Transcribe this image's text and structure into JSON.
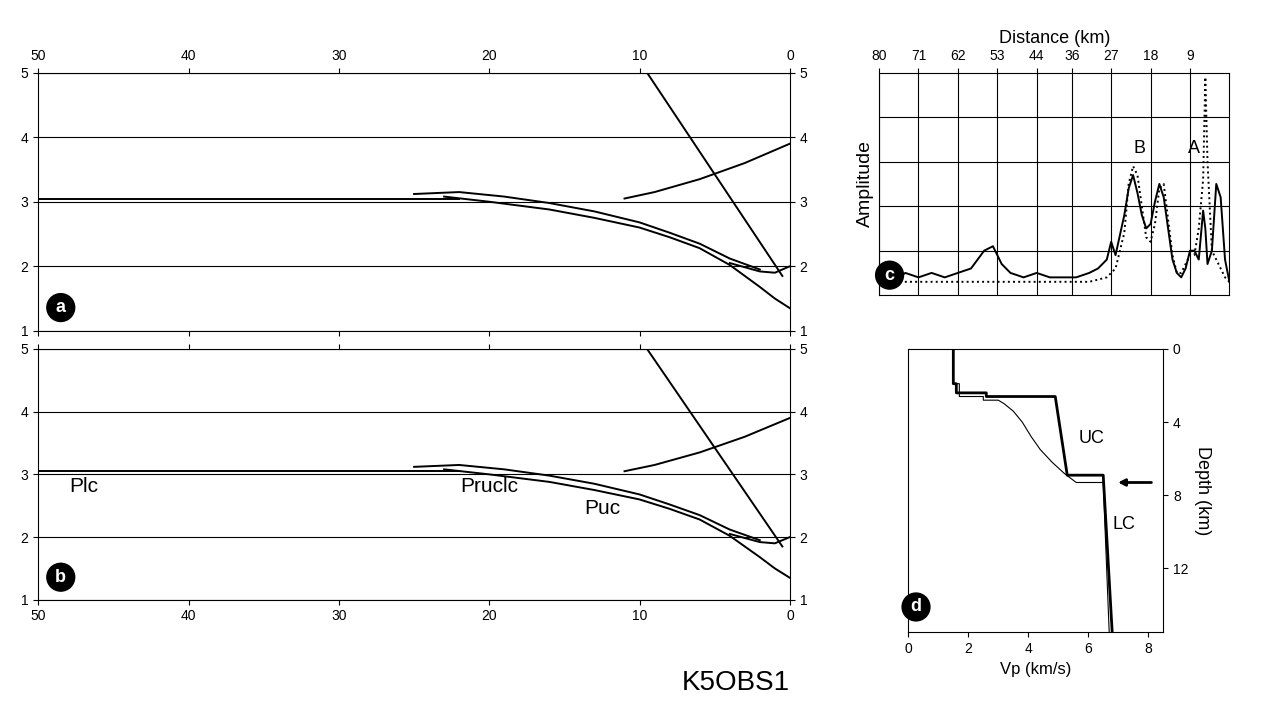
{
  "chart_data": [
    {
      "type": "line",
      "title": "a",
      "xlim": [
        50,
        0
      ],
      "xticks": [
        50,
        40,
        30,
        20,
        10,
        0
      ],
      "ylim": [
        1,
        5
      ],
      "yticks": [
        1,
        2,
        3,
        4,
        5
      ],
      "grid": true,
      "series": [
        {
          "color": "#000000",
          "line_style": "solid",
          "x": [
            0,
            1,
            2,
            3,
            4,
            6,
            8,
            10,
            13,
            16,
            20,
            23
          ],
          "values": [
            1.35,
            1.5,
            1.68,
            1.85,
            2.02,
            2.28,
            2.45,
            2.6,
            2.75,
            2.88,
            3.0,
            3.08
          ]
        },
        {
          "color": "#000000",
          "line_style": "solid",
          "x": [
            2,
            4,
            6,
            8,
            10,
            13,
            16,
            19,
            22,
            25
          ],
          "values": [
            1.95,
            2.12,
            2.35,
            2.52,
            2.68,
            2.85,
            2.98,
            3.08,
            3.15,
            3.12
          ]
        },
        {
          "color": "#000000",
          "line_style": "solid",
          "x": [
            50,
            40,
            30,
            22
          ],
          "values": [
            3.05,
            3.05,
            3.05,
            3.05
          ]
        },
        {
          "color": "#000000",
          "line_style": "solid",
          "x": [
            0,
            1,
            2,
            4
          ],
          "values": [
            2.0,
            1.9,
            1.92,
            2.05
          ]
        },
        {
          "color": "#000000",
          "line_style": "solid",
          "x": [
            0,
            3,
            6,
            9,
            11
          ],
          "values": [
            3.9,
            3.6,
            3.35,
            3.15,
            3.05
          ]
        },
        {
          "color": "#000000",
          "line_style": "solid",
          "x": [
            0.5,
            9.5
          ],
          "values": [
            1.85,
            5.0
          ]
        }
      ]
    },
    {
      "type": "line",
      "title": "b",
      "xlim": [
        50,
        0
      ],
      "xticks": [
        50,
        40,
        30,
        20,
        10,
        0
      ],
      "ylim": [
        1,
        5
      ],
      "yticks": [
        1,
        2,
        3,
        4,
        5
      ],
      "grid": true,
      "series": [
        {
          "color": "#000000",
          "line_style": "solid",
          "x": [
            0,
            1,
            2,
            3,
            4,
            6,
            8,
            10,
            13,
            16,
            20,
            23
          ],
          "values": [
            1.35,
            1.5,
            1.68,
            1.85,
            2.02,
            2.28,
            2.45,
            2.6,
            2.75,
            2.88,
            3.0,
            3.08
          ]
        },
        {
          "color": "#000000",
          "line_style": "solid",
          "x": [
            2,
            4,
            6,
            8,
            10,
            13,
            16,
            19,
            22,
            25
          ],
          "values": [
            1.95,
            2.12,
            2.35,
            2.52,
            2.68,
            2.85,
            2.98,
            3.08,
            3.15,
            3.12
          ]
        },
        {
          "color": "#000000",
          "line_style": "solid",
          "x": [
            50,
            40,
            30,
            22
          ],
          "values": [
            3.05,
            3.05,
            3.05,
            3.05
          ]
        },
        {
          "color": "#000000",
          "line_style": "solid",
          "x": [
            0,
            1,
            2,
            4
          ],
          "values": [
            2.0,
            1.9,
            1.92,
            2.05
          ]
        },
        {
          "color": "#000000",
          "line_style": "solid",
          "x": [
            0,
            3,
            6,
            9,
            11
          ],
          "values": [
            3.9,
            3.6,
            3.35,
            3.15,
            3.05
          ]
        },
        {
          "color": "#000000",
          "line_style": "solid",
          "x": [
            0.5,
            9.5
          ],
          "values": [
            1.85,
            5.0
          ]
        }
      ],
      "annotations": [
        {
          "text": "Plc",
          "x": 47,
          "y": 2.8
        },
        {
          "text": "Pruclc",
          "x": 20,
          "y": 2.8
        },
        {
          "text": "Puc",
          "x": 12.5,
          "y": 2.45
        }
      ]
    },
    {
      "type": "line",
      "title": "c",
      "x_label": "Distance (km)",
      "y_label": "Amplitude",
      "xlim": [
        80,
        0
      ],
      "xticks": [
        80,
        71,
        62,
        53,
        44,
        36,
        27,
        18,
        9
      ],
      "ylim": [
        0,
        5
      ],
      "yticks": [
        1,
        2,
        3,
        4
      ],
      "grid": true,
      "tick_labels": "x",
      "x": [
        80,
        77,
        74,
        71,
        68,
        65,
        62,
        59,
        56,
        54,
        52,
        50,
        47,
        44,
        41,
        38,
        35,
        32,
        30,
        28,
        27,
        26,
        24,
        23,
        22,
        21,
        20,
        19,
        18,
        17,
        16,
        15,
        14,
        13,
        12,
        11,
        10,
        9,
        8,
        7,
        6,
        5.5,
        5,
        4,
        3,
        2,
        1,
        0
      ],
      "series": [
        {
          "color": "#000000",
          "line_style": "solid",
          "values": [
            0.4,
            0.3,
            0.5,
            0.4,
            0.5,
            0.4,
            0.5,
            0.6,
            1.0,
            1.1,
            0.7,
            0.5,
            0.4,
            0.5,
            0.4,
            0.4,
            0.4,
            0.5,
            0.6,
            0.8,
            1.2,
            0.9,
            1.8,
            2.4,
            2.7,
            2.3,
            1.8,
            1.5,
            1.6,
            2.1,
            2.5,
            2.2,
            1.5,
            0.8,
            0.5,
            0.4,
            0.6,
            1.0,
            1.0,
            0.8,
            1.9,
            1.5,
            0.7,
            1.0,
            2.5,
            2.2,
            0.8,
            0.3
          ]
        },
        {
          "color": "#000000",
          "line_style": "dotted",
          "values": [
            0.3,
            0.3,
            0.3,
            0.3,
            0.3,
            0.3,
            0.3,
            0.3,
            0.3,
            0.3,
            0.3,
            0.3,
            0.3,
            0.3,
            0.3,
            0.3,
            0.3,
            0.3,
            0.35,
            0.4,
            0.5,
            0.6,
            1.4,
            2.5,
            2.9,
            2.7,
            2.0,
            1.3,
            1.2,
            1.6,
            2.4,
            2.5,
            1.7,
            0.9,
            0.5,
            0.5,
            0.7,
            0.9,
            0.9,
            1.5,
            2.6,
            4.9,
            3.0,
            1.0,
            0.8,
            0.6,
            0.4,
            0.3
          ]
        }
      ],
      "annotations": [
        {
          "text": "B",
          "x": 20.5,
          "y": 3.3
        },
        {
          "text": "A",
          "x": 8,
          "y": 3.3
        }
      ]
    },
    {
      "type": "line",
      "title": "d",
      "x_label": "Vp (km/s)",
      "y_label": "Depth (km)",
      "xlim": [
        0,
        8.5
      ],
      "xticks": [
        0,
        2,
        4,
        6,
        8
      ],
      "ylim": [
        15.5,
        0
      ],
      "yticks": [
        0,
        4,
        8,
        12
      ],
      "grid": false,
      "series": [
        {
          "color": "#000000",
          "line_style": "solid",
          "x": [
            1.5,
            1.5,
            1.6,
            1.6,
            2.6,
            2.6,
            4.9,
            5.3,
            6.5,
            6.8
          ],
          "values": [
            0,
            1.9,
            1.9,
            2.4,
            2.4,
            2.6,
            2.6,
            6.9,
            6.9,
            15.5
          ]
        },
        {
          "color": "#000000",
          "line_style": "solid",
          "x": [
            1.5,
            1.5,
            1.7,
            1.7,
            2.5,
            2.5,
            3.0,
            3.2,
            3.5,
            3.8,
            4.1,
            4.4,
            4.8,
            5.2,
            5.6,
            6.5,
            6.7
          ],
          "values": [
            0,
            1.9,
            1.9,
            2.6,
            2.6,
            2.8,
            2.8,
            3.0,
            3.4,
            4.0,
            4.8,
            5.5,
            6.2,
            6.8,
            7.3,
            7.3,
            15.5
          ]
        }
      ],
      "annotations": [
        {
          "text": "UC",
          "x": 6.1,
          "y": 4.9
        },
        {
          "text": "LC",
          "x": 7.2,
          "y": 9.6
        }
      ],
      "arrow": {
        "x": 6.9,
        "y": 7.3
      }
    }
  ],
  "caption": "K5OBS1"
}
